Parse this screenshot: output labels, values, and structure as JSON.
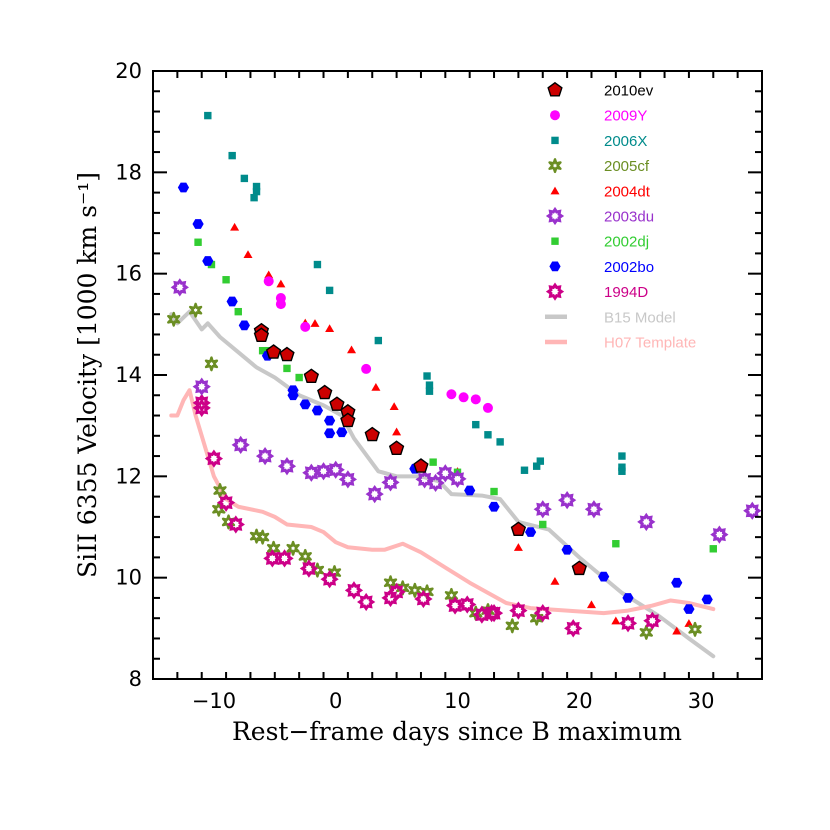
{
  "chart_data": {
    "type": "scatter",
    "xlabel": "Rest−frame days since B maximum",
    "ylabel": "SiII 6355 Velocity [1000 km s⁻¹]",
    "xlim": [
      -15,
      35
    ],
    "ylim": [
      8,
      20
    ],
    "xticks": [
      -10,
      0,
      10,
      20,
      30
    ],
    "yticks": [
      8,
      10,
      12,
      14,
      16,
      18,
      20
    ],
    "legend_position": "top-right",
    "grid": false,
    "series": [
      {
        "name": "2010ev",
        "marker": "pentagon",
        "color": "#cc0000",
        "points": [
          [
            -6.1,
            14.87
          ],
          [
            -6.1,
            14.78
          ],
          [
            -5.1,
            14.45
          ],
          [
            -4,
            14.4
          ],
          [
            -2,
            13.97
          ],
          [
            -0.9,
            13.65
          ],
          [
            0.1,
            13.42
          ],
          [
            1,
            13.27
          ],
          [
            1,
            13.1
          ],
          [
            3,
            12.82
          ],
          [
            5,
            12.55
          ],
          [
            7,
            12.2
          ],
          [
            15,
            10.95
          ],
          [
            20,
            10.18
          ]
        ]
      },
      {
        "name": "2009Y",
        "marker": "circle",
        "color": "#ff00ff",
        "points": [
          [
            -5.5,
            15.85
          ],
          [
            -4.5,
            15.52
          ],
          [
            -4.5,
            15.4
          ],
          [
            -2.5,
            14.95
          ],
          [
            2.5,
            14.12
          ],
          [
            9.5,
            13.62
          ],
          [
            10.5,
            13.56
          ],
          [
            11.5,
            13.52
          ],
          [
            12.5,
            13.35
          ]
        ]
      },
      {
        "name": "2006X",
        "marker": "square",
        "color": "#008b8b",
        "points": [
          [
            -10.5,
            19.12
          ],
          [
            -8.5,
            18.33
          ],
          [
            -7.5,
            17.88
          ],
          [
            -6.5,
            17.72
          ],
          [
            -6.5,
            17.62
          ],
          [
            -6.7,
            17.5
          ],
          [
            -1.5,
            16.18
          ],
          [
            -0.5,
            15.67
          ],
          [
            3.5,
            14.68
          ],
          [
            7.5,
            13.98
          ],
          [
            7.7,
            13.8
          ],
          [
            7.7,
            13.68
          ],
          [
            11.5,
            13.02
          ],
          [
            12.5,
            12.82
          ],
          [
            13.5,
            12.68
          ],
          [
            15.5,
            12.12
          ],
          [
            16.5,
            12.2
          ],
          [
            16.8,
            12.3
          ],
          [
            23.5,
            12.4
          ],
          [
            23.5,
            12.18
          ],
          [
            23.5,
            12.1
          ]
        ]
      },
      {
        "name": "2005cf",
        "marker": "star",
        "color": "#6b8e23",
        "points": [
          [
            -13.3,
            15.1
          ],
          [
            -11.5,
            15.28
          ],
          [
            -10.2,
            14.22
          ],
          [
            -9.5,
            11.72
          ],
          [
            -9.6,
            11.35
          ],
          [
            -8.8,
            11.1
          ],
          [
            -6.5,
            10.82
          ],
          [
            -6,
            10.8
          ],
          [
            -5.1,
            10.58
          ],
          [
            -3.5,
            10.58
          ],
          [
            -2.5,
            10.42
          ],
          [
            -1.5,
            10.15
          ],
          [
            -0.1,
            10.1
          ],
          [
            4.5,
            9.9
          ],
          [
            5.5,
            9.8
          ],
          [
            6.5,
            9.75
          ],
          [
            7.5,
            9.72
          ],
          [
            9.5,
            9.65
          ],
          [
            11.5,
            9.3
          ],
          [
            12.5,
            9.35
          ],
          [
            14.5,
            9.05
          ],
          [
            16.5,
            9.2
          ],
          [
            25.5,
            8.92
          ],
          [
            29.5,
            8.98
          ]
        ]
      },
      {
        "name": "2004dt",
        "marker": "triangle",
        "color": "#ff0000",
        "points": [
          [
            -8.3,
            16.92
          ],
          [
            -7.2,
            16.38
          ],
          [
            -5.5,
            15.98
          ],
          [
            -4.5,
            15.8
          ],
          [
            -2.5,
            15.03
          ],
          [
            -1.7,
            15.02
          ],
          [
            -0.5,
            14.92
          ],
          [
            1.3,
            14.5
          ],
          [
            3.3,
            13.76
          ],
          [
            4.8,
            13.38
          ],
          [
            5,
            12.88
          ],
          [
            10,
            12.1
          ],
          [
            15,
            10.6
          ],
          [
            18,
            9.93
          ],
          [
            21,
            9.47
          ],
          [
            23,
            9.15
          ],
          [
            28,
            8.95
          ],
          [
            29,
            9.1
          ]
        ]
      },
      {
        "name": "2003du",
        "marker": "star8",
        "color": "#9932cc",
        "points": [
          [
            -12.8,
            15.73
          ],
          [
            -11,
            13.77
          ],
          [
            -7.8,
            12.62
          ],
          [
            -5.8,
            12.4
          ],
          [
            -4,
            12.2
          ],
          [
            -2,
            12.07
          ],
          [
            -1,
            12.1
          ],
          [
            0,
            12.13
          ],
          [
            1,
            11.94
          ],
          [
            3.2,
            11.65
          ],
          [
            4.5,
            11.88
          ],
          [
            7.3,
            11.94
          ],
          [
            8.2,
            11.87
          ],
          [
            9,
            12.06
          ],
          [
            10,
            11.95
          ],
          [
            17,
            11.35
          ],
          [
            19,
            11.53
          ],
          [
            21.2,
            11.35
          ],
          [
            25.5,
            11.1
          ],
          [
            31.5,
            10.85
          ],
          [
            34.2,
            11.32
          ]
        ]
      },
      {
        "name": "2002dj",
        "marker": "square",
        "color": "#32cd32",
        "points": [
          [
            -11.3,
            16.62
          ],
          [
            -10.2,
            16.18
          ],
          [
            -9,
            15.88
          ],
          [
            -8,
            15.25
          ],
          [
            -6,
            14.48
          ],
          [
            -5.5,
            14.48
          ],
          [
            -4,
            14.13
          ],
          [
            -3,
            13.95
          ],
          [
            8,
            12.28
          ],
          [
            10,
            12.08
          ],
          [
            13,
            11.7
          ],
          [
            17,
            11.05
          ],
          [
            23,
            10.67
          ],
          [
            31,
            10.57
          ]
        ]
      },
      {
        "name": "2002bo",
        "marker": "hexagon",
        "color": "#0000ff",
        "points": [
          [
            -12.5,
            17.7
          ],
          [
            -11.3,
            16.98
          ],
          [
            -10.5,
            16.25
          ],
          [
            -8.5,
            15.45
          ],
          [
            -7.5,
            14.98
          ],
          [
            -5.6,
            14.38
          ],
          [
            -3.5,
            13.7
          ],
          [
            -3.5,
            13.6
          ],
          [
            -2.5,
            13.42
          ],
          [
            -1.5,
            13.3
          ],
          [
            -0.5,
            13.1
          ],
          [
            -0.5,
            12.85
          ],
          [
            0.5,
            12.87
          ],
          [
            6.5,
            12.15
          ],
          [
            11,
            11.72
          ],
          [
            13,
            11.4
          ],
          [
            16,
            10.9
          ],
          [
            19,
            10.55
          ],
          [
            22,
            10.02
          ],
          [
            24,
            9.6
          ],
          [
            28,
            9.9
          ],
          [
            29,
            9.38
          ],
          [
            30.5,
            9.57
          ]
        ]
      },
      {
        "name": "1994D",
        "marker": "star8",
        "color": "#cc0088",
        "points": [
          [
            -11,
            13.45
          ],
          [
            -11,
            13.35
          ],
          [
            -10,
            12.35
          ],
          [
            -9,
            11.48
          ],
          [
            -8.2,
            11.05
          ],
          [
            -5.2,
            10.38
          ],
          [
            -4.2,
            10.38
          ],
          [
            -2.2,
            10.18
          ],
          [
            -0.5,
            9.97
          ],
          [
            1.5,
            9.75
          ],
          [
            2.5,
            9.52
          ],
          [
            4.5,
            9.6
          ],
          [
            5,
            9.72
          ],
          [
            7.2,
            9.58
          ],
          [
            9.8,
            9.45
          ],
          [
            10.8,
            9.47
          ],
          [
            12,
            9.27
          ],
          [
            12.8,
            9.3
          ],
          [
            13,
            9.3
          ],
          [
            15,
            9.35
          ],
          [
            17,
            9.3
          ],
          [
            19.5,
            9.0
          ],
          [
            24,
            9.1
          ],
          [
            26,
            9.15
          ]
        ]
      },
      {
        "name": "B15 Model",
        "marker": "line",
        "color": "#c8c8c8",
        "points": [
          [
            -13.5,
            15.2
          ],
          [
            -13,
            15.02
          ],
          [
            -12,
            15.25
          ],
          [
            -11,
            14.9
          ],
          [
            -10.5,
            15.02
          ],
          [
            -9.5,
            14.75
          ],
          [
            -8,
            14.45
          ],
          [
            -6.5,
            14.15
          ],
          [
            -5,
            13.95
          ],
          [
            -3,
            13.6
          ],
          [
            -1,
            13.4
          ],
          [
            0.5,
            13.2
          ],
          [
            1.5,
            12.75
          ],
          [
            3.5,
            12.1
          ],
          [
            5,
            12.0
          ],
          [
            7,
            12.0
          ],
          [
            8.5,
            11.9
          ],
          [
            9.5,
            11.65
          ],
          [
            12,
            11.62
          ],
          [
            13.5,
            11.55
          ],
          [
            15,
            11.1
          ],
          [
            17.5,
            10.95
          ],
          [
            20,
            10.4
          ],
          [
            23.5,
            9.7
          ],
          [
            26.5,
            9.25
          ],
          [
            29,
            8.8
          ],
          [
            31,
            8.45
          ]
        ]
      },
      {
        "name": "H07 Template",
        "marker": "line",
        "color": "#ffb6b6",
        "points": [
          [
            -13.5,
            13.2
          ],
          [
            -13,
            13.2
          ],
          [
            -12.5,
            13.5
          ],
          [
            -12,
            13.7
          ],
          [
            -11.5,
            13.2
          ],
          [
            -11,
            12.8
          ],
          [
            -10,
            12.0
          ],
          [
            -9,
            11.55
          ],
          [
            -8,
            11.4
          ],
          [
            -6,
            11.3
          ],
          [
            -5,
            11.2
          ],
          [
            -4,
            11.05
          ],
          [
            -2,
            11.0
          ],
          [
            -1,
            10.9
          ],
          [
            0,
            10.7
          ],
          [
            1,
            10.6
          ],
          [
            3,
            10.55
          ],
          [
            4,
            10.55
          ],
          [
            5.5,
            10.67
          ],
          [
            7,
            10.5
          ],
          [
            9,
            10.2
          ],
          [
            11,
            9.9
          ],
          [
            12.5,
            9.7
          ],
          [
            14,
            9.5
          ],
          [
            16,
            9.4
          ],
          [
            19,
            9.35
          ],
          [
            22,
            9.3
          ],
          [
            24,
            9.35
          ],
          [
            26,
            9.45
          ],
          [
            27.5,
            9.55
          ],
          [
            29,
            9.5
          ],
          [
            31,
            9.38
          ]
        ]
      }
    ]
  }
}
